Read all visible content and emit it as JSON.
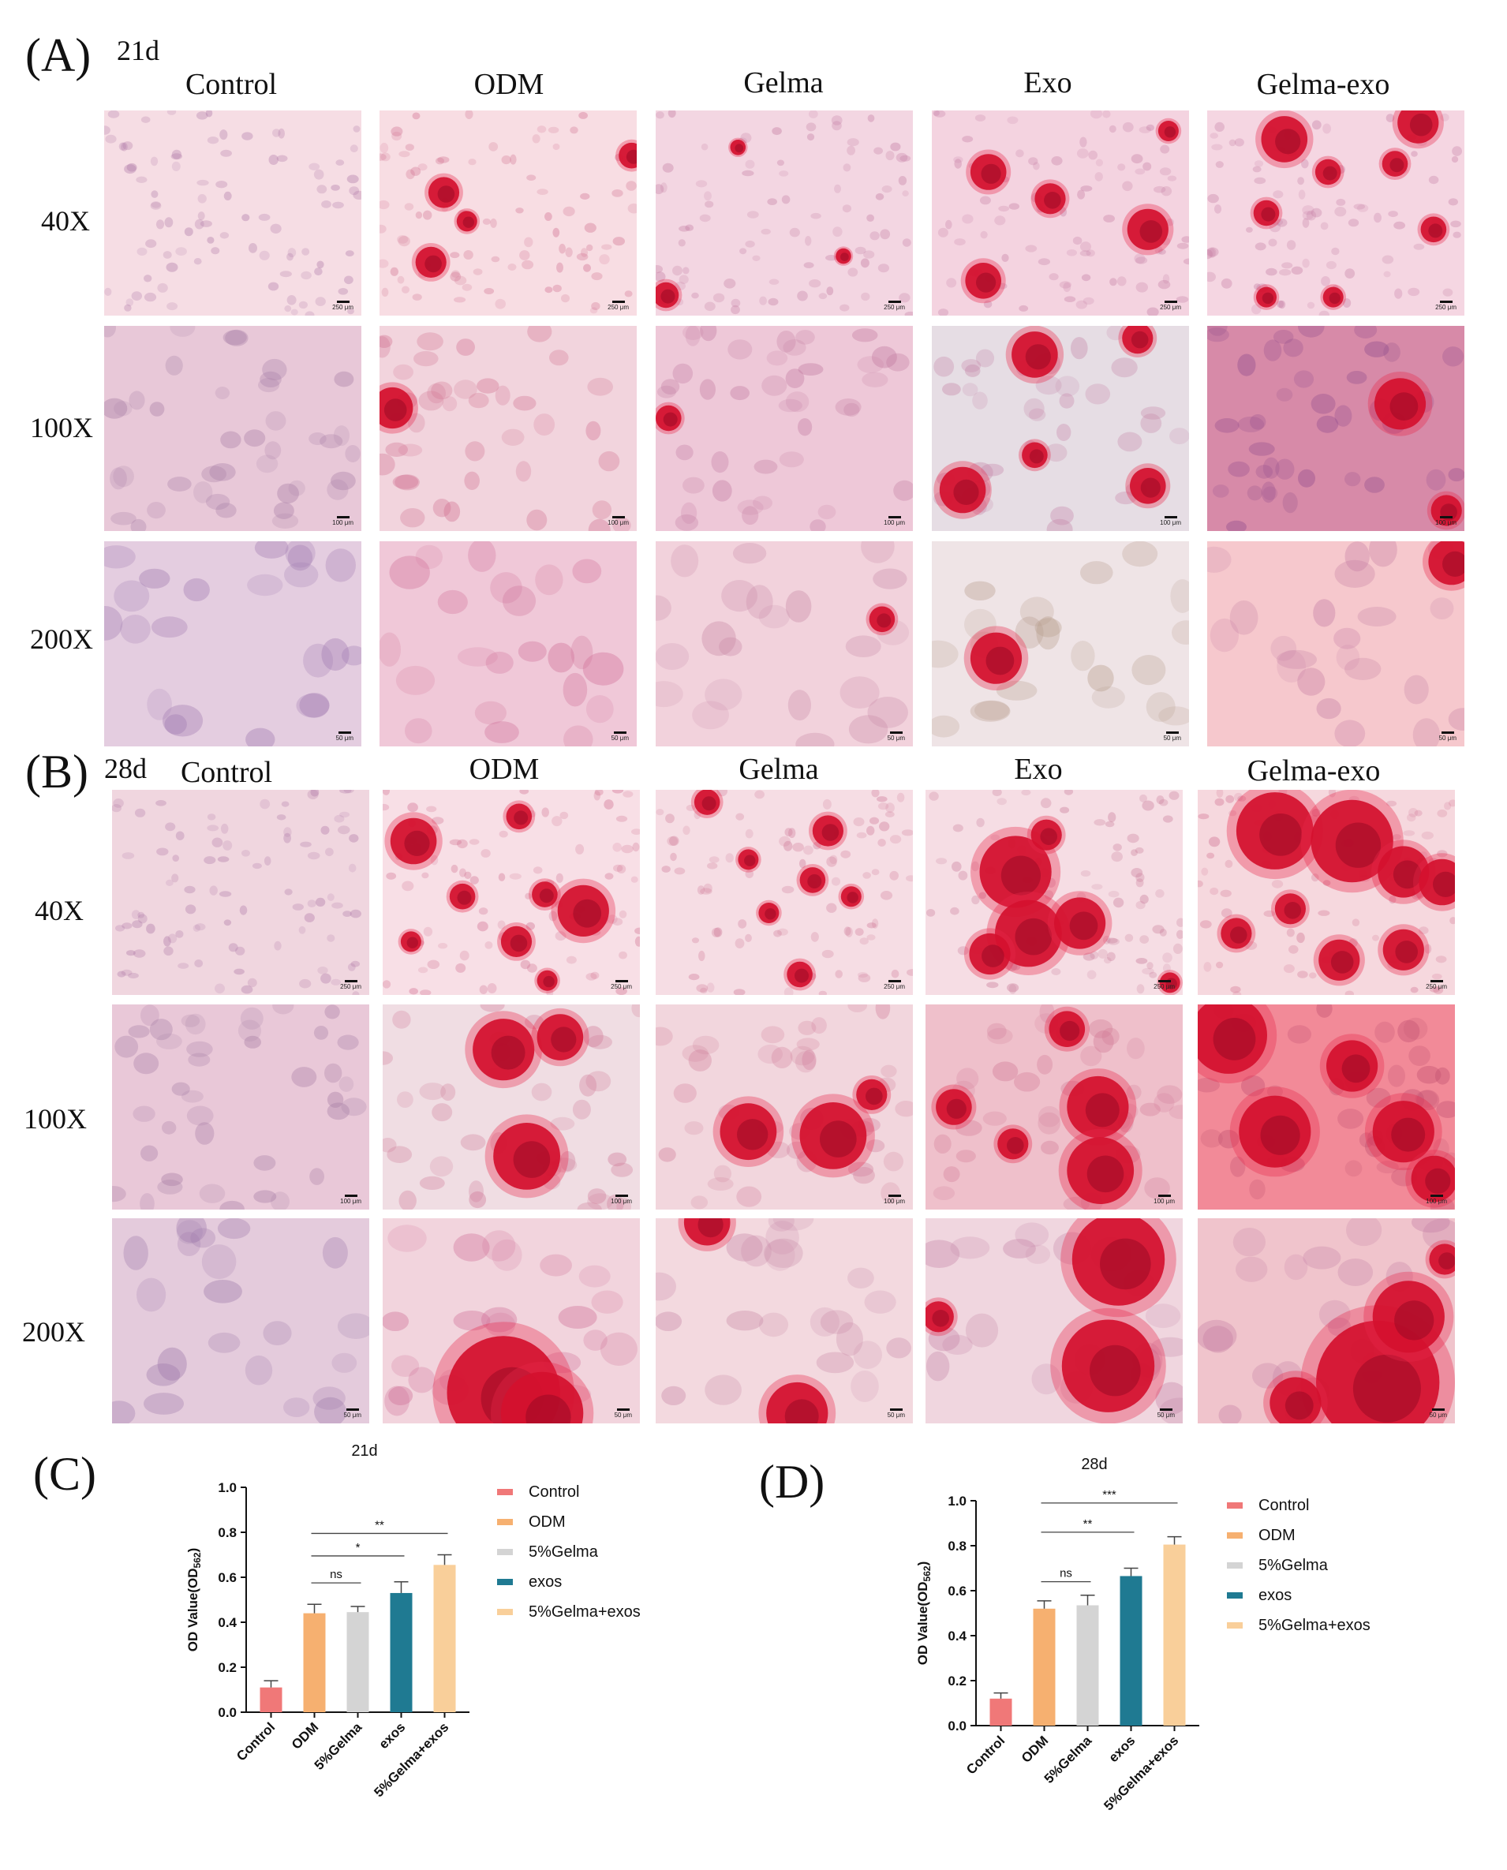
{
  "panels": {
    "A": {
      "letter": "(A)",
      "day": "21d"
    },
    "B": {
      "letter": "(B)",
      "day": "28d"
    },
    "C": {
      "letter": "(C)"
    },
    "D": {
      "letter": "(D)"
    }
  },
  "columns": [
    "Control",
    "ODM",
    "Gelma",
    "Exo",
    "Gelma-exo"
  ],
  "rows": [
    "40X",
    "100X",
    "200X"
  ],
  "scale_bars": [
    "250 μm",
    "100 μm",
    "50 μm"
  ],
  "micrographs": {
    "A": [
      [
        {
          "bg": "#f6dde4",
          "blobs": [],
          "dots": [
            "#b07aa8"
          ]
        },
        {
          "bg": "#f8dde3",
          "blobs": [
            [
              0.25,
              0.4,
              0.06
            ],
            [
              0.2,
              0.74,
              0.06
            ],
            [
              0.98,
              0.22,
              0.05
            ],
            [
              0.34,
              0.54,
              0.04
            ]
          ],
          "dots": [
            "#d07090"
          ]
        },
        {
          "bg": "#f3d6e2",
          "blobs": [
            [
              0.04,
              0.9,
              0.05
            ],
            [
              0.73,
              0.71,
              0.03
            ],
            [
              0.32,
              0.18,
              0.03
            ]
          ],
          "dots": [
            "#c27aa0"
          ]
        },
        {
          "bg": "#f4d3e0",
          "blobs": [
            [
              0.22,
              0.3,
              0.07
            ],
            [
              0.46,
              0.43,
              0.06
            ],
            [
              0.84,
              0.58,
              0.08
            ],
            [
              0.2,
              0.83,
              0.07
            ],
            [
              0.92,
              0.1,
              0.04
            ]
          ],
          "dots": [
            "#c57ea4"
          ]
        },
        {
          "bg": "#f5d6e2",
          "blobs": [
            [
              0.3,
              0.14,
              0.09
            ],
            [
              0.82,
              0.06,
              0.08
            ],
            [
              0.47,
              0.3,
              0.05
            ],
            [
              0.73,
              0.26,
              0.05
            ],
            [
              0.23,
              0.5,
              0.05
            ],
            [
              0.88,
              0.58,
              0.05
            ],
            [
              0.23,
              0.91,
              0.04
            ],
            [
              0.49,
              0.91,
              0.04
            ]
          ],
          "dots": [
            "#c57ea4"
          ]
        }
      ],
      [
        {
          "bg": "#e8c8d8",
          "blobs": [],
          "dots": [
            "#a77ea6"
          ]
        },
        {
          "bg": "#f2d4dd",
          "blobs": [
            [
              0.05,
              0.4,
              0.08
            ]
          ],
          "dots": [
            "#d07090"
          ]
        },
        {
          "bg": "#eec8d8",
          "blobs": [
            [
              0.05,
              0.45,
              0.05
            ]
          ],
          "dots": [
            "#c27aa0"
          ]
        },
        {
          "bg": "#e6dde4",
          "blobs": [
            [
              0.4,
              0.14,
              0.09
            ],
            [
              0.8,
              0.06,
              0.06
            ],
            [
              0.4,
              0.63,
              0.05
            ],
            [
              0.12,
              0.8,
              0.09
            ],
            [
              0.84,
              0.78,
              0.07
            ]
          ],
          "dots": [
            "#c585a8"
          ]
        },
        {
          "bg": "#d78aa8",
          "blobs": [
            [
              0.75,
              0.38,
              0.1
            ],
            [
              0.93,
              0.9,
              0.06
            ]
          ],
          "dots": [
            "#8e4a8c"
          ]
        }
      ],
      [
        {
          "bg": "#e4cde0",
          "blobs": [],
          "dots": [
            "#a07ab0"
          ]
        },
        {
          "bg": "#f0c8d8",
          "blobs": [],
          "dots": [
            "#d07098"
          ]
        },
        {
          "bg": "#f2d2dc",
          "blobs": [
            [
              0.88,
              0.38,
              0.05
            ]
          ],
          "dots": [
            "#c88aa8"
          ]
        },
        {
          "bg": "#efe4e6",
          "blobs": [
            [
              0.25,
              0.57,
              0.1
            ]
          ],
          "dots": [
            "#b69a8a"
          ]
        },
        {
          "bg": "#f6c8cd",
          "blobs": [
            [
              0.95,
              0.1,
              0.09
            ]
          ],
          "dots": [
            "#c57ea4"
          ]
        }
      ]
    ],
    "B": [
      [
        {
          "bg": "#f0d6df",
          "blobs": [],
          "dots": [
            "#b07aa8"
          ]
        },
        {
          "bg": "#f8dfe6",
          "blobs": [
            [
              0.12,
              0.25,
              0.09
            ],
            [
              0.78,
              0.59,
              0.1
            ],
            [
              0.52,
              0.74,
              0.06
            ],
            [
              0.53,
              0.13,
              0.05
            ],
            [
              0.31,
              0.52,
              0.05
            ],
            [
              0.63,
              0.51,
              0.05
            ],
            [
              0.11,
              0.74,
              0.04
            ],
            [
              0.64,
              0.93,
              0.04
            ]
          ],
          "dots": [
            "#d07090"
          ]
        },
        {
          "bg": "#f6dde4",
          "blobs": [
            [
              0.2,
              0.06,
              0.05
            ],
            [
              0.67,
              0.2,
              0.06
            ],
            [
              0.36,
              0.34,
              0.04
            ],
            [
              0.61,
              0.44,
              0.05
            ],
            [
              0.76,
              0.52,
              0.04
            ],
            [
              0.44,
              0.6,
              0.04
            ],
            [
              0.56,
              0.9,
              0.05
            ]
          ],
          "dots": [
            "#cf7a98"
          ]
        },
        {
          "bg": "#f6dde4",
          "blobs": [
            [
              0.35,
              0.4,
              0.14
            ],
            [
              0.4,
              0.7,
              0.13
            ],
            [
              0.6,
              0.65,
              0.1
            ],
            [
              0.25,
              0.8,
              0.08
            ],
            [
              0.47,
              0.22,
              0.06
            ],
            [
              0.95,
              0.94,
              0.04
            ]
          ],
          "dots": [
            "#c87a98"
          ]
        },
        {
          "bg": "#f6d8de",
          "blobs": [
            [
              0.3,
              0.2,
              0.15
            ],
            [
              0.6,
              0.25,
              0.16
            ],
            [
              0.8,
              0.4,
              0.1
            ],
            [
              0.95,
              0.45,
              0.09
            ],
            [
              0.36,
              0.58,
              0.06
            ],
            [
              0.55,
              0.83,
              0.08
            ],
            [
              0.8,
              0.78,
              0.08
            ],
            [
              0.15,
              0.7,
              0.06
            ]
          ],
          "dots": [
            "#d07090"
          ]
        }
      ],
      [
        {
          "bg": "#e9c8d8",
          "blobs": [],
          "dots": [
            "#a77ea6"
          ]
        },
        {
          "bg": "#f0dde3",
          "blobs": [
            [
              0.47,
              0.22,
              0.12
            ],
            [
              0.69,
              0.16,
              0.09
            ],
            [
              0.56,
              0.74,
              0.13
            ]
          ],
          "dots": [
            "#cf7a98"
          ]
        },
        {
          "bg": "#f2d6dd",
          "blobs": [
            [
              0.36,
              0.62,
              0.11
            ],
            [
              0.69,
              0.64,
              0.13
            ],
            [
              0.84,
              0.44,
              0.06
            ]
          ],
          "dots": [
            "#cf7a98"
          ]
        },
        {
          "bg": "#efc0cb",
          "blobs": [
            [
              0.55,
              0.12,
              0.07
            ],
            [
              0.11,
              0.5,
              0.07
            ],
            [
              0.67,
              0.5,
              0.12
            ],
            [
              0.68,
              0.81,
              0.13
            ],
            [
              0.34,
              0.68,
              0.06
            ]
          ],
          "dots": [
            "#d27a96"
          ]
        },
        {
          "bg": "#f28a98",
          "blobs": [
            [
              0.12,
              0.15,
              0.15
            ],
            [
              0.6,
              0.3,
              0.1
            ],
            [
              0.3,
              0.62,
              0.14
            ],
            [
              0.8,
              0.62,
              0.12
            ],
            [
              0.92,
              0.85,
              0.09
            ]
          ],
          "dots": [
            "#c05070"
          ]
        }
      ],
      [
        {
          "bg": "#e4cbdc",
          "blobs": [],
          "dots": [
            "#9e79ab"
          ]
        },
        {
          "bg": "#f2d4dd",
          "blobs": [
            [
              0.47,
              0.85,
              0.22
            ],
            [
              0.62,
              0.95,
              0.16
            ]
          ],
          "dots": [
            "#d07098"
          ]
        },
        {
          "bg": "#f3d9df",
          "blobs": [
            [
              0.2,
              0.02,
              0.09
            ],
            [
              0.55,
              0.95,
              0.12
            ]
          ],
          "dots": [
            "#c88aa8"
          ]
        },
        {
          "bg": "#f0d6df",
          "blobs": [
            [
              0.75,
              0.2,
              0.18
            ],
            [
              0.71,
              0.72,
              0.18
            ],
            [
              0.05,
              0.48,
              0.06
            ]
          ],
          "dots": [
            "#c585a8"
          ]
        },
        {
          "bg": "#f0c4cc",
          "blobs": [
            [
              0.7,
              0.8,
              0.24
            ],
            [
              0.82,
              0.48,
              0.14
            ],
            [
              0.38,
              0.9,
              0.1
            ],
            [
              0.96,
              0.2,
              0.06
            ]
          ],
          "dots": [
            "#c57ea4"
          ]
        }
      ]
    ]
  },
  "chart_data": [
    {
      "type": "bar",
      "title": "21d",
      "ylabel": "OD Value(OD562)",
      "ylim": [
        0,
        1.0
      ],
      "yticks": [
        "0.0",
        "0.2",
        "0.4",
        "0.6",
        "0.8",
        "1.0"
      ],
      "categories": [
        "Control",
        "ODM",
        "5%Gelma",
        "exos",
        "5%Gelma+exos"
      ],
      "values": [
        0.11,
        0.44,
        0.445,
        0.53,
        0.655
      ],
      "errors": [
        0.03,
        0.04,
        0.025,
        0.05,
        0.045
      ],
      "colors": [
        "#f07878",
        "#f6b070",
        "#d4d4d4",
        "#1f7a92",
        "#f9cf9a"
      ],
      "significance": [
        {
          "label": "ns",
          "from": 1,
          "to": 2,
          "y": 0.575
        },
        {
          "label": "*",
          "from": 1,
          "to": 3,
          "y": 0.695
        },
        {
          "label": "**",
          "from": 1,
          "to": 4,
          "y": 0.795
        }
      ],
      "legend": [
        "Control",
        "ODM",
        "5%Gelma",
        "exos",
        "5%Gelma+exos"
      ]
    },
    {
      "type": "bar",
      "title": "28d",
      "ylabel": "OD Value(OD562)",
      "ylim": [
        0,
        1.0
      ],
      "yticks": [
        "0.0",
        "0.2",
        "0.4",
        "0.6",
        "0.8",
        "1.0"
      ],
      "categories": [
        "Control",
        "ODM",
        "5%Gelma",
        "exos",
        "5%Gelma+exos"
      ],
      "values": [
        0.12,
        0.52,
        0.535,
        0.665,
        0.805
      ],
      "errors": [
        0.025,
        0.035,
        0.045,
        0.035,
        0.035
      ],
      "colors": [
        "#f07878",
        "#f6b070",
        "#d4d4d4",
        "#1f7a92",
        "#f9cf9a"
      ],
      "significance": [
        {
          "label": "ns",
          "from": 1,
          "to": 2,
          "y": 0.64
        },
        {
          "label": "**",
          "from": 1,
          "to": 3,
          "y": 0.86
        },
        {
          "label": "***",
          "from": 1,
          "to": 4,
          "y": 0.99
        }
      ],
      "legend": [
        "Control",
        "ODM",
        "5%Gelma",
        "exos",
        "5%Gelma+exos"
      ]
    }
  ]
}
